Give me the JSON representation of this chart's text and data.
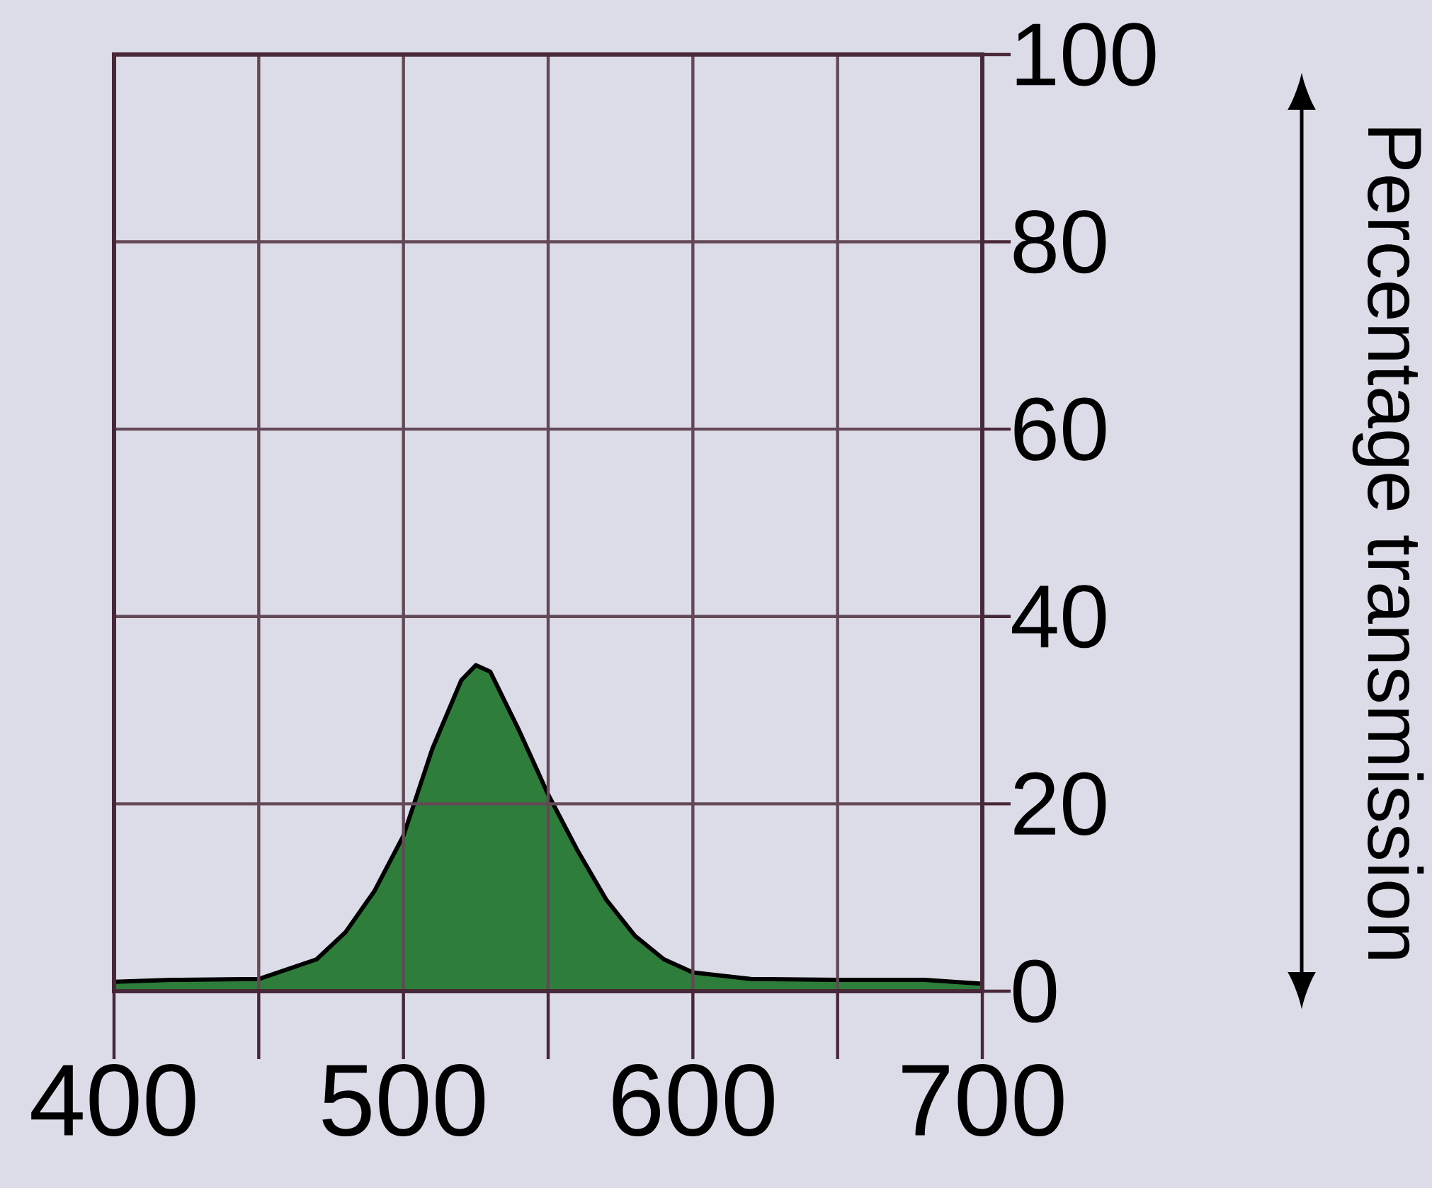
{
  "chart_data": {
    "type": "area",
    "ylabel": "Percentage transmission",
    "x": [
      400,
      420,
      450,
      470,
      480,
      490,
      500,
      510,
      520,
      525,
      530,
      540,
      550,
      560,
      570,
      580,
      590,
      600,
      620,
      650,
      680,
      700
    ],
    "values": [
      1.0,
      1.2,
      1.3,
      3.4,
      6.3,
      10.7,
      16.6,
      25.9,
      33.2,
      34.8,
      34.1,
      27.8,
      21,
      15.1,
      9.8,
      5.9,
      3.4,
      2,
      1.3,
      1.2,
      1.2,
      0.8
    ],
    "color": "#2e7d3a",
    "xlim": [
      400,
      700
    ],
    "ylim": [
      0,
      100
    ],
    "xticks": [
      400,
      {
        "value": 450,
        "label": null
      },
      500,
      {
        "value": 550,
        "label": null
      },
      600,
      {
        "value": 650,
        "label": null
      },
      700
    ],
    "yticks": [
      0,
      20,
      40,
      60,
      80,
      100
    ],
    "grid": true
  }
}
